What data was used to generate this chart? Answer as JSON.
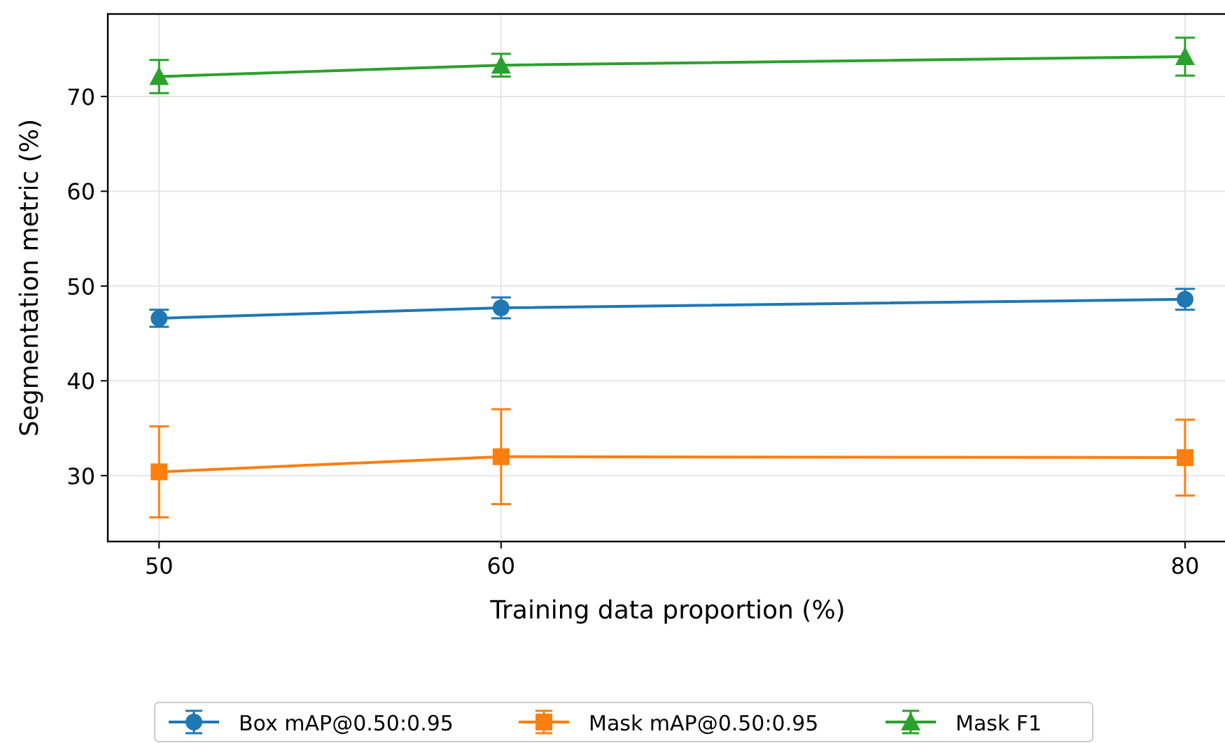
{
  "chart_data": {
    "type": "line",
    "xlabel": "Training data proportion (%)",
    "ylabel": "Segmentation metric (%)",
    "x": [
      50,
      60,
      80
    ],
    "xlim": [
      48.5,
      81.25
    ],
    "xticks": [
      50,
      60,
      80
    ],
    "ylim": [
      23.05,
      78.7
    ],
    "yticks": [
      30,
      40,
      50,
      60,
      70
    ],
    "grid": true,
    "legend": "bottom",
    "line_style": "solid",
    "series": [
      {
        "name": "Box mAP@0.50:0.95",
        "color": "#1f77b4",
        "marker": "circle",
        "values": [
          46.6,
          47.7,
          48.6
        ],
        "errors": [
          0.9,
          1.1,
          1.1
        ]
      },
      {
        "name": "Mask mAP@0.50:0.95",
        "color": "#ff7f0e",
        "marker": "square",
        "values": [
          30.4,
          32.0,
          31.9
        ],
        "errors": [
          4.8,
          5.0,
          4.0
        ]
      },
      {
        "name": "Mask F1",
        "color": "#2ca02c",
        "marker": "triangle",
        "values": [
          72.1,
          73.3,
          74.2
        ],
        "errors": [
          1.75,
          1.2,
          2.0
        ]
      }
    ]
  }
}
